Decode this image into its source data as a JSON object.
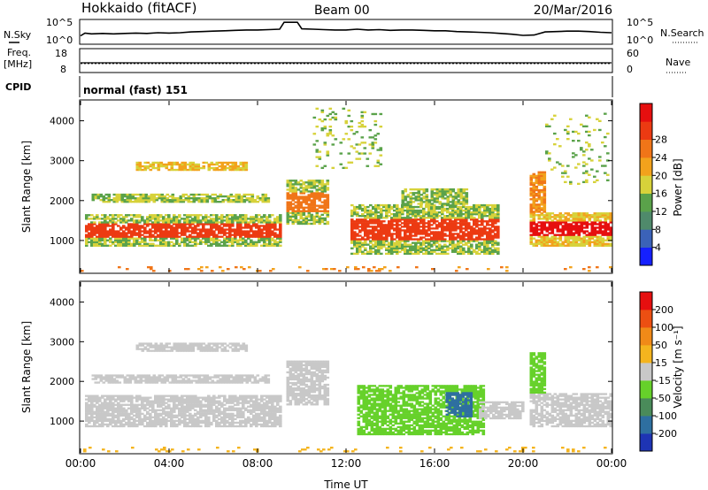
{
  "header": {
    "title": "Hokkaido (fitACF)",
    "beam": "Beam 00",
    "date": "20/Mar/2016"
  },
  "strip_labels": {
    "nsky": "N.Sky",
    "nsearch": "N.Search",
    "freq_line1": "Freq.",
    "freq_line2": "[MHz]",
    "nave": "Nave",
    "cpid": "CPID",
    "cpid_value": "normal (fast) 151"
  },
  "chart_data": [
    {
      "type": "line",
      "name_label": "N.Sky",
      "y_ticks_left": [
        "10^5",
        "10^0"
      ],
      "y_ticks_right": [
        "10^5",
        "10^0"
      ],
      "x": [
        0,
        0.2,
        0.5,
        1,
        1.5,
        2,
        2.5,
        3,
        3.5,
        4,
        4.5,
        5,
        5.5,
        6,
        6.5,
        7,
        7.5,
        8,
        8.5,
        9,
        9.2,
        9.4,
        9.6,
        9.8,
        10,
        10.5,
        11,
        11.5,
        12,
        12.5,
        13,
        13.5,
        14,
        14.5,
        15,
        15.5,
        16,
        16.5,
        17,
        17.5,
        18,
        18.5,
        19,
        19.5,
        20,
        20.5,
        21,
        21.5,
        22,
        22.5,
        23,
        23.5,
        24
      ],
      "values": [
        1.5,
        2.2,
        2.0,
        2.1,
        2.0,
        2.1,
        2.2,
        2.1,
        2.3,
        2.2,
        2.3,
        2.5,
        2.6,
        2.7,
        2.8,
        2.9,
        3.0,
        3.0,
        3.1,
        3.2,
        5.0,
        5.0,
        5.0,
        5.0,
        3.3,
        3.2,
        3.1,
        3.0,
        3.0,
        3.2,
        3.0,
        3.1,
        2.9,
        3.0,
        3.0,
        2.9,
        2.8,
        2.8,
        2.6,
        2.5,
        2.4,
        2.3,
        2.1,
        1.9,
        1.6,
        1.7,
        2.5,
        2.6,
        2.7,
        2.7,
        2.6,
        2.4,
        2.3
      ],
      "ylim": [
        0,
        5.5
      ]
    },
    {
      "type": "line",
      "name_label": "Freq. [MHz]",
      "y_ticks_left": [
        "18",
        "8"
      ],
      "y_ticks_right": [
        "60",
        "0"
      ],
      "freq_value": 12.0,
      "nave_value": 22,
      "ylim": [
        8,
        18
      ]
    },
    {
      "type": "heatmap",
      "panel": "power",
      "xlabel": "",
      "ylabel": "Slant Range [km]",
      "x_ticks": [
        "00:00",
        "04:00",
        "08:00",
        "12:00",
        "16:00",
        "20:00",
        "00:00"
      ],
      "y_ticks": [
        "1000",
        "2000",
        "3000",
        "4000"
      ],
      "ylim": [
        200,
        4500
      ],
      "colorbar_label": "Power [dB]",
      "colorbar_ticks": [
        "4",
        "8",
        "12",
        "16",
        "20",
        "24",
        "28"
      ],
      "colorbar_colors": [
        "#1520ff",
        "#3b62b8",
        "#4f8a6b",
        "#5aa24a",
        "#d7d23a",
        "#f2a21c",
        "#f07518",
        "#ec3a12",
        "#e60f0f"
      ],
      "regions": [
        {
          "t0": 0.2,
          "t1": 9.0,
          "r0": 850,
          "r1": 1650,
          "level": 3,
          "core_level": 7
        },
        {
          "t0": 0.5,
          "t1": 8.5,
          "r0": 1950,
          "r1": 2150,
          "level": 3
        },
        {
          "t0": 2.5,
          "t1": 7.5,
          "r0": 2750,
          "r1": 2950,
          "level": 4
        },
        {
          "t0": 9.3,
          "t1": 11.2,
          "r0": 1400,
          "r1": 2500,
          "level": 3,
          "core_level": 6
        },
        {
          "t0": 12.2,
          "t1": 18.8,
          "r0": 650,
          "r1": 1900,
          "level": 3,
          "core_level": 7
        },
        {
          "t0": 14.5,
          "t1": 17.5,
          "r0": 1900,
          "r1": 2300,
          "level": 3
        },
        {
          "t0": 20.3,
          "t1": 24.0,
          "r0": 850,
          "r1": 1700,
          "level": 4,
          "core_level": 8
        },
        {
          "t0": 20.3,
          "t1": 21.0,
          "r0": 1700,
          "r1": 2700,
          "level": 5
        },
        {
          "t0": 21.0,
          "t1": 23.8,
          "r0": 2400,
          "r1": 4200,
          "level": 3,
          "sparse": true
        },
        {
          "t0": 10.5,
          "t1": 13.5,
          "r0": 2800,
          "r1": 4300,
          "level": 3,
          "sparse": true
        },
        {
          "t0": 0.0,
          "t1": 24.0,
          "r0": 220,
          "r1": 320,
          "level": 5,
          "sparse": true
        }
      ]
    },
    {
      "type": "heatmap",
      "panel": "velocity",
      "xlabel": "Time UT",
      "ylabel": "Slant Range [km]",
      "x_ticks": [
        "00:00",
        "04:00",
        "08:00",
        "12:00",
        "16:00",
        "20:00",
        "00:00"
      ],
      "y_ticks": [
        "1000",
        "2000",
        "3000",
        "4000"
      ],
      "ylim": [
        200,
        4500
      ],
      "colorbar_label": "Velocity [m s⁻¹]",
      "colorbar_ticks": [
        "200",
        "100",
        "50",
        "15",
        "-15",
        "-50",
        "-100",
        "-200"
      ],
      "colorbar_colors": [
        "#1e34b4",
        "#2e6fa0",
        "#4a8b5a",
        "#66d12a",
        "#c8c8c8",
        "#f4b41e",
        "#f08a18",
        "#ec4f12",
        "#e60f0f"
      ],
      "regions": [
        {
          "t0": 0.2,
          "t1": 9.0,
          "r0": 850,
          "r1": 1650,
          "color": "#c8c8c8"
        },
        {
          "t0": 0.5,
          "t1": 8.5,
          "r0": 1950,
          "r1": 2150,
          "color": "#c8c8c8"
        },
        {
          "t0": 2.5,
          "t1": 7.5,
          "r0": 2750,
          "r1": 2950,
          "color": "#c8c8c8"
        },
        {
          "t0": 9.3,
          "t1": 11.2,
          "r0": 1400,
          "r1": 2500,
          "color": "#c8c8c8"
        },
        {
          "t0": 12.5,
          "t1": 18.2,
          "r0": 650,
          "r1": 1900,
          "color": "#66d12a"
        },
        {
          "t0": 16.5,
          "t1": 17.6,
          "r0": 1100,
          "r1": 1700,
          "color": "#2e6fa0"
        },
        {
          "t0": 18.0,
          "t1": 20.0,
          "r0": 1050,
          "r1": 1500,
          "color": "#c8c8c8"
        },
        {
          "t0": 20.3,
          "t1": 24.0,
          "r0": 850,
          "r1": 1700,
          "color": "#c8c8c8"
        },
        {
          "t0": 20.3,
          "t1": 21.0,
          "r0": 1700,
          "r1": 2700,
          "color": "#66d12a"
        },
        {
          "t0": 0.0,
          "t1": 24.0,
          "r0": 220,
          "r1": 320,
          "color": "#f4b41e",
          "sparse": true
        }
      ]
    }
  ]
}
